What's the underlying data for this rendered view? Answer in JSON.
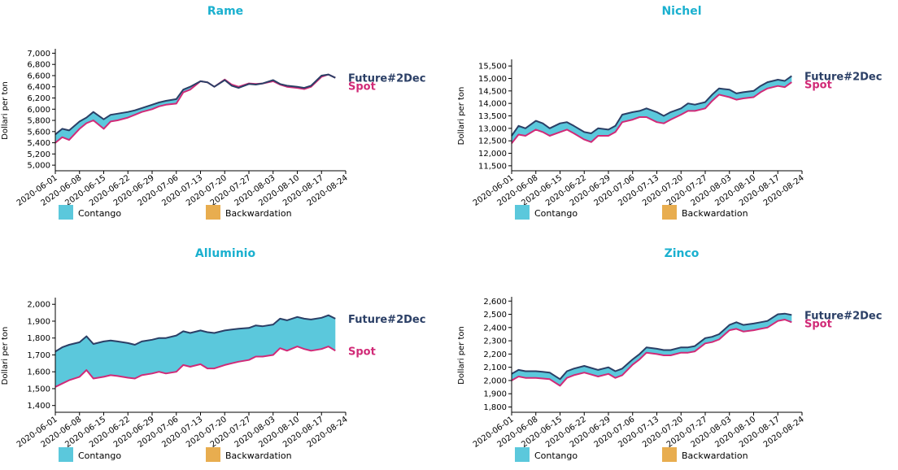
{
  "colors": {
    "title": "#1ab0cf",
    "future": "#2b3f66",
    "spot": "#d12a77",
    "contango": "#5bc8dc",
    "backwardation": "#e8ad4f",
    "axis": "#000000"
  },
  "legend": {
    "contango": "Contango",
    "backwardation": "Backwardation"
  },
  "labels": {
    "future": "Future#2Dec",
    "spot": "Spot"
  },
  "x_ticks": [
    "2020-06-01",
    "2020-06-08",
    "2020-06-15",
    "2020-06-22",
    "2020-06-29",
    "2020-07-06",
    "2020-07-13",
    "2020-07-20",
    "2020-07-27",
    "2020-08-03",
    "2020-08-10",
    "2020-08-17",
    "2020-08-24"
  ],
  "chart_data": [
    {
      "type": "area",
      "title": "Rame",
      "ylabel": "Dollari per ton",
      "ylim": [
        4900,
        7050
      ],
      "yticks": [
        5000,
        5200,
        5400,
        5600,
        5800,
        6000,
        6200,
        6400,
        6600,
        6800,
        7000
      ],
      "x_range": [
        "2020-06-01",
        "2020-08-24"
      ],
      "series": [
        {
          "name": "Future#2Dec",
          "x": [
            "2020-06-01",
            "2020-06-03",
            "2020-06-05",
            "2020-06-08",
            "2020-06-10",
            "2020-06-12",
            "2020-06-15",
            "2020-06-17",
            "2020-06-19",
            "2020-06-22",
            "2020-06-24",
            "2020-06-26",
            "2020-06-29",
            "2020-07-01",
            "2020-07-03",
            "2020-07-06",
            "2020-07-08",
            "2020-07-10",
            "2020-07-13",
            "2020-07-15",
            "2020-07-17",
            "2020-07-20",
            "2020-07-22",
            "2020-07-24",
            "2020-07-27",
            "2020-07-29",
            "2020-07-31",
            "2020-08-03",
            "2020-08-05",
            "2020-08-07",
            "2020-08-10",
            "2020-08-12",
            "2020-08-14",
            "2020-08-17",
            "2020-08-19",
            "2020-08-21"
          ],
          "values": [
            5550,
            5650,
            5620,
            5780,
            5850,
            5950,
            5820,
            5900,
            5920,
            5950,
            5980,
            6020,
            6080,
            6120,
            6150,
            6180,
            6350,
            6400,
            6500,
            6480,
            6400,
            6520,
            6420,
            6380,
            6450,
            6440,
            6460,
            6520,
            6450,
            6420,
            6400,
            6380,
            6420,
            6600,
            6620,
            6560
          ]
        },
        {
          "name": "Spot",
          "x": [
            "2020-06-01",
            "2020-06-03",
            "2020-06-05",
            "2020-06-08",
            "2020-06-10",
            "2020-06-12",
            "2020-06-15",
            "2020-06-17",
            "2020-06-19",
            "2020-06-22",
            "2020-06-24",
            "2020-06-26",
            "2020-06-29",
            "2020-07-01",
            "2020-07-03",
            "2020-07-06",
            "2020-07-08",
            "2020-07-10",
            "2020-07-13",
            "2020-07-15",
            "2020-07-17",
            "2020-07-20",
            "2020-07-22",
            "2020-07-24",
            "2020-07-27",
            "2020-07-29",
            "2020-07-31",
            "2020-08-03",
            "2020-08-05",
            "2020-08-07",
            "2020-08-10",
            "2020-08-12",
            "2020-08-14",
            "2020-08-17",
            "2020-08-19",
            "2020-08-21"
          ],
          "values": [
            5400,
            5500,
            5450,
            5650,
            5750,
            5800,
            5650,
            5780,
            5800,
            5850,
            5900,
            5950,
            6000,
            6050,
            6080,
            6100,
            6300,
            6350,
            6500,
            6480,
            6400,
            6530,
            6440,
            6400,
            6460,
            6450,
            6460,
            6500,
            6440,
            6400,
            6380,
            6360,
            6400,
            6580,
            6620,
            6560
          ]
        }
      ]
    },
    {
      "type": "area",
      "title": "Nichel",
      "ylabel": "Dollari per ton",
      "ylim": [
        11300,
        15700
      ],
      "yticks": [
        11500,
        12000,
        12500,
        13000,
        13500,
        14000,
        14500,
        15000,
        15500
      ],
      "x_range": [
        "2020-06-01",
        "2020-08-24"
      ],
      "series": [
        {
          "name": "Future#2Dec",
          "x": [
            "2020-06-01",
            "2020-06-03",
            "2020-06-05",
            "2020-06-08",
            "2020-06-10",
            "2020-06-12",
            "2020-06-15",
            "2020-06-17",
            "2020-06-19",
            "2020-06-22",
            "2020-06-24",
            "2020-06-26",
            "2020-06-29",
            "2020-07-01",
            "2020-07-03",
            "2020-07-06",
            "2020-07-08",
            "2020-07-10",
            "2020-07-13",
            "2020-07-15",
            "2020-07-17",
            "2020-07-20",
            "2020-07-22",
            "2020-07-24",
            "2020-07-27",
            "2020-07-29",
            "2020-07-31",
            "2020-08-03",
            "2020-08-05",
            "2020-08-07",
            "2020-08-10",
            "2020-08-12",
            "2020-08-14",
            "2020-08-17",
            "2020-08-19",
            "2020-08-21"
          ],
          "values": [
            12700,
            13100,
            13000,
            13300,
            13200,
            13000,
            13200,
            13250,
            13100,
            12850,
            12800,
            13000,
            12950,
            13100,
            13550,
            13650,
            13700,
            13800,
            13650,
            13500,
            13650,
            13800,
            14000,
            13950,
            14050,
            14350,
            14600,
            14550,
            14400,
            14450,
            14500,
            14700,
            14850,
            14950,
            14900,
            15100
          ]
        },
        {
          "name": "Spot",
          "x": [
            "2020-06-01",
            "2020-06-03",
            "2020-06-05",
            "2020-06-08",
            "2020-06-10",
            "2020-06-12",
            "2020-06-15",
            "2020-06-17",
            "2020-06-19",
            "2020-06-22",
            "2020-06-24",
            "2020-06-26",
            "2020-06-29",
            "2020-07-01",
            "2020-07-03",
            "2020-07-06",
            "2020-07-08",
            "2020-07-10",
            "2020-07-13",
            "2020-07-15",
            "2020-07-17",
            "2020-07-20",
            "2020-07-22",
            "2020-07-24",
            "2020-07-27",
            "2020-07-29",
            "2020-07-31",
            "2020-08-03",
            "2020-08-05",
            "2020-08-07",
            "2020-08-10",
            "2020-08-12",
            "2020-08-14",
            "2020-08-17",
            "2020-08-19",
            "2020-08-21"
          ],
          "values": [
            12400,
            12750,
            12700,
            12950,
            12850,
            12700,
            12850,
            12950,
            12800,
            12550,
            12450,
            12700,
            12700,
            12850,
            13250,
            13350,
            13450,
            13450,
            13250,
            13200,
            13350,
            13550,
            13700,
            13700,
            13800,
            14100,
            14350,
            14250,
            14150,
            14200,
            14250,
            14450,
            14600,
            14700,
            14650,
            14850
          ]
        }
      ]
    },
    {
      "type": "area",
      "title": "Alluminio",
      "ylabel": "Dollari per ton",
      "ylim": [
        1360,
        2030
      ],
      "yticks": [
        1400,
        1500,
        1600,
        1700,
        1800,
        1900,
        2000
      ],
      "x_range": [
        "2020-06-01",
        "2020-08-24"
      ],
      "series": [
        {
          "name": "Future#2Dec",
          "x": [
            "2020-06-01",
            "2020-06-03",
            "2020-06-05",
            "2020-06-08",
            "2020-06-10",
            "2020-06-12",
            "2020-06-15",
            "2020-06-17",
            "2020-06-19",
            "2020-06-22",
            "2020-06-24",
            "2020-06-26",
            "2020-06-29",
            "2020-07-01",
            "2020-07-03",
            "2020-07-06",
            "2020-07-08",
            "2020-07-10",
            "2020-07-13",
            "2020-07-15",
            "2020-07-17",
            "2020-07-20",
            "2020-07-22",
            "2020-07-24",
            "2020-07-27",
            "2020-07-29",
            "2020-07-31",
            "2020-08-03",
            "2020-08-05",
            "2020-08-07",
            "2020-08-10",
            "2020-08-12",
            "2020-08-14",
            "2020-08-17",
            "2020-08-19",
            "2020-08-21"
          ],
          "values": [
            1720,
            1745,
            1760,
            1775,
            1810,
            1765,
            1780,
            1785,
            1780,
            1770,
            1760,
            1780,
            1790,
            1800,
            1800,
            1815,
            1840,
            1830,
            1845,
            1835,
            1830,
            1845,
            1850,
            1855,
            1860,
            1875,
            1870,
            1880,
            1915,
            1905,
            1925,
            1915,
            1910,
            1920,
            1935,
            1915
          ]
        },
        {
          "name": "Spot",
          "x": [
            "2020-06-01",
            "2020-06-03",
            "2020-06-05",
            "2020-06-08",
            "2020-06-10",
            "2020-06-12",
            "2020-06-15",
            "2020-06-17",
            "2020-06-19",
            "2020-06-22",
            "2020-06-24",
            "2020-06-26",
            "2020-06-29",
            "2020-07-01",
            "2020-07-03",
            "2020-07-06",
            "2020-07-08",
            "2020-07-10",
            "2020-07-13",
            "2020-07-15",
            "2020-07-17",
            "2020-07-20",
            "2020-07-22",
            "2020-07-24",
            "2020-07-27",
            "2020-07-29",
            "2020-07-31",
            "2020-08-03",
            "2020-08-05",
            "2020-08-07",
            "2020-08-10",
            "2020-08-12",
            "2020-08-14",
            "2020-08-17",
            "2020-08-19",
            "2020-08-21"
          ],
          "values": [
            1510,
            1530,
            1550,
            1570,
            1610,
            1560,
            1570,
            1580,
            1575,
            1565,
            1560,
            1580,
            1590,
            1600,
            1590,
            1600,
            1640,
            1630,
            1645,
            1620,
            1620,
            1640,
            1650,
            1660,
            1670,
            1690,
            1690,
            1700,
            1740,
            1725,
            1750,
            1735,
            1725,
            1735,
            1750,
            1725
          ]
        }
      ]
    },
    {
      "type": "area",
      "title": "Zinco",
      "ylabel": "Dollari per ton",
      "ylim": [
        1760,
        2620
      ],
      "yticks": [
        1800,
        1900,
        2000,
        2100,
        2200,
        2300,
        2400,
        2500,
        2600
      ],
      "x_range": [
        "2020-06-01",
        "2020-08-24"
      ],
      "series": [
        {
          "name": "Future#2Dec",
          "x": [
            "2020-06-01",
            "2020-06-03",
            "2020-06-05",
            "2020-06-08",
            "2020-06-10",
            "2020-06-12",
            "2020-06-15",
            "2020-06-17",
            "2020-06-19",
            "2020-06-22",
            "2020-06-24",
            "2020-06-26",
            "2020-06-29",
            "2020-07-01",
            "2020-07-03",
            "2020-07-06",
            "2020-07-08",
            "2020-07-10",
            "2020-07-13",
            "2020-07-15",
            "2020-07-17",
            "2020-07-20",
            "2020-07-22",
            "2020-07-24",
            "2020-07-27",
            "2020-07-29",
            "2020-07-31",
            "2020-08-03",
            "2020-08-05",
            "2020-08-07",
            "2020-08-10",
            "2020-08-12",
            "2020-08-14",
            "2020-08-17",
            "2020-08-19",
            "2020-08-21"
          ],
          "values": [
            2050,
            2080,
            2070,
            2070,
            2065,
            2060,
            2010,
            2070,
            2090,
            2110,
            2095,
            2080,
            2100,
            2070,
            2090,
            2160,
            2200,
            2250,
            2240,
            2230,
            2230,
            2250,
            2250,
            2260,
            2320,
            2330,
            2350,
            2420,
            2440,
            2420,
            2430,
            2440,
            2450,
            2500,
            2505,
            2495
          ]
        },
        {
          "name": "Spot",
          "x": [
            "2020-06-01",
            "2020-06-03",
            "2020-06-05",
            "2020-06-08",
            "2020-06-10",
            "2020-06-12",
            "2020-06-15",
            "2020-06-17",
            "2020-06-19",
            "2020-06-22",
            "2020-06-24",
            "2020-06-26",
            "2020-06-29",
            "2020-07-01",
            "2020-07-03",
            "2020-07-06",
            "2020-07-08",
            "2020-07-10",
            "2020-07-13",
            "2020-07-15",
            "2020-07-17",
            "2020-07-20",
            "2020-07-22",
            "2020-07-24",
            "2020-07-27",
            "2020-07-29",
            "2020-07-31",
            "2020-08-03",
            "2020-08-05",
            "2020-08-07",
            "2020-08-10",
            "2020-08-12",
            "2020-08-14",
            "2020-08-17",
            "2020-08-19",
            "2020-08-21"
          ],
          "values": [
            2000,
            2030,
            2020,
            2020,
            2015,
            2010,
            1960,
            2020,
            2040,
            2060,
            2045,
            2030,
            2050,
            2020,
            2040,
            2120,
            2160,
            2210,
            2200,
            2190,
            2190,
            2210,
            2210,
            2220,
            2280,
            2290,
            2310,
            2380,
            2390,
            2370,
            2380,
            2390,
            2400,
            2450,
            2460,
            2440
          ]
        }
      ]
    }
  ]
}
